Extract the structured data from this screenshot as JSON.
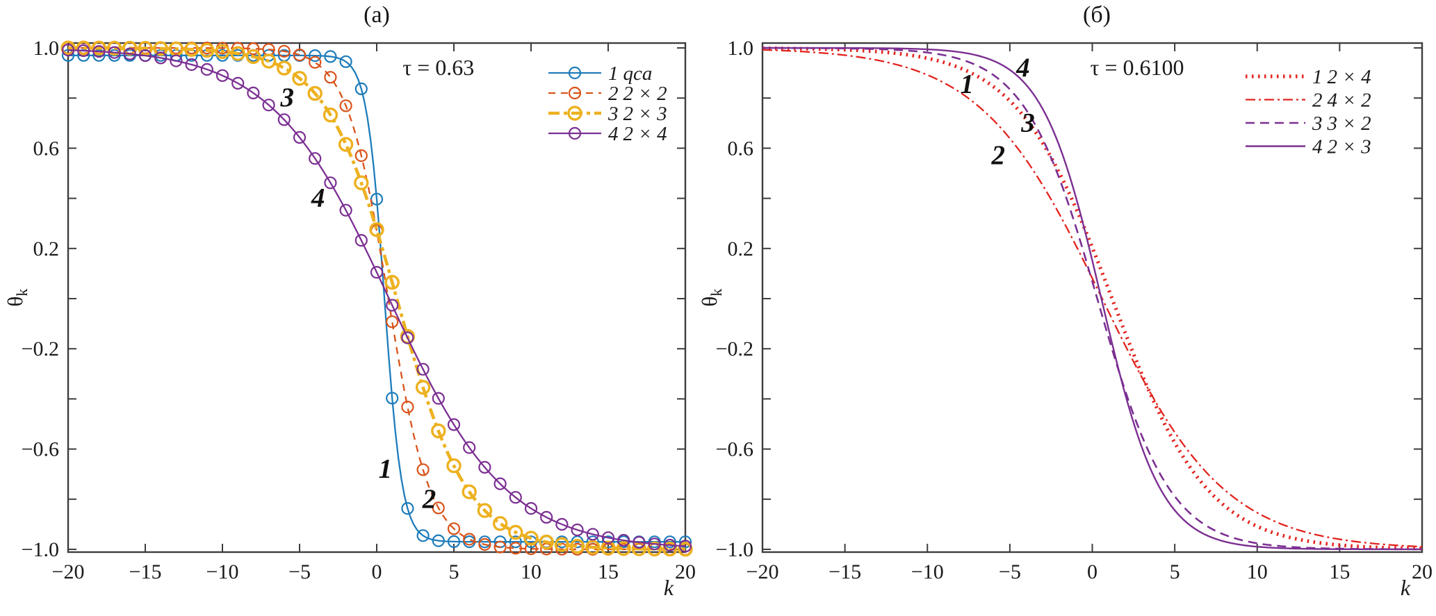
{
  "figure": {
    "background": "#ffffff",
    "axis_color": "#3d3d3d",
    "text_color": "#1a1a1a"
  },
  "chart_data": [
    {
      "panel": "a",
      "type": "line",
      "title": "(a)",
      "tau_label": "τ = 0.63",
      "xlabel": "k",
      "ylabel": {
        "text": "θ",
        "sub": "k"
      },
      "xlim": [
        -20,
        20
      ],
      "ylim": [
        -1.01,
        1.02
      ],
      "xticks": [
        -20,
        -15,
        -10,
        -5,
        0,
        5,
        10,
        15,
        20
      ],
      "yticks_labeled": [
        1.0,
        0.6,
        0.2,
        -0.2,
        -0.6,
        -1.0
      ],
      "ytick_minor_step": 0.2,
      "grid": false,
      "legend_position": "top-right",
      "series": [
        {
          "num": "1",
          "label": "qca",
          "color": "#1e7cba",
          "style": "solid",
          "line_width": 2.3,
          "markers": true,
          "marker": "circle",
          "model": {
            "type": "theta = -amp*tanh((k-x0)/w)",
            "amp": 0.97,
            "x0": 0.5,
            "w": 1.15
          }
        },
        {
          "num": "2",
          "label": "2 × 2",
          "color": "#d95319",
          "style": "dashed",
          "line_width": 2.3,
          "markers": true,
          "marker": "circle",
          "model": {
            "type": "theta = -amp*tanh((k-x0)/w)",
            "amp": 1.0,
            "x0": 0.75,
            "w": 2.7
          }
        },
        {
          "num": "3",
          "label": "2 × 3",
          "color": "#edb120",
          "style": "dashdot",
          "line_width": 4.6,
          "markers": true,
          "marker": "circle",
          "model": {
            "type": "theta = -amp*tanh((k-x0)/w)",
            "amp": 1.0,
            "x0": 1.3,
            "w": 4.6
          }
        },
        {
          "num": "4",
          "label": "2 × 4",
          "color": "#7b2f92",
          "style": "solid",
          "line_width": 2.3,
          "markers": true,
          "marker": "circle",
          "model": {
            "type": "theta = -amp*tanh((k-x0)/w)",
            "amp": 1.0,
            "x0": 0.8,
            "w": 7.6
          }
        }
      ],
      "annotations": [
        {
          "text": "3",
          "k": -5.8,
          "v": 0.8
        },
        {
          "text": "4",
          "k": -3.8,
          "v": 0.4
        },
        {
          "text": "1",
          "k": 0.55,
          "v": -0.68
        },
        {
          "text": "2",
          "k": 3.4,
          "v": -0.8
        }
      ]
    },
    {
      "panel": "b",
      "type": "line",
      "title": "(б)",
      "tau_label": "τ = 0.6100",
      "xlabel": "k",
      "ylabel": {
        "text": "θ",
        "sub": "k"
      },
      "xlim": [
        -20,
        20
      ],
      "ylim": [
        -1.01,
        1.02
      ],
      "xticks": [
        -20,
        -15,
        -10,
        -5,
        0,
        5,
        10,
        15,
        20
      ],
      "yticks_labeled": [
        1.0,
        0.6,
        0.2,
        -0.2,
        -0.6,
        -1.0
      ],
      "ytick_minor_step": 0.2,
      "grid": false,
      "legend_position": "top-right",
      "series": [
        {
          "num": "1",
          "label": "2 × 4",
          "color": "#e2231e",
          "style": "dotted",
          "line_width": 5.2,
          "markers": false,
          "model": {
            "type": "theta = -amp*tanh((k-x0)/w)",
            "amp": 1.0,
            "x0": 1.2,
            "w": 5.8
          }
        },
        {
          "num": "2",
          "label": "4 × 2",
          "color": "#e2231e",
          "style": "dashdot",
          "line_width": 2.3,
          "markers": false,
          "model": {
            "type": "theta = -amp*tanh((k-x0)/w)",
            "amp": 1.0,
            "x0": 0.6,
            "w": 7.4
          }
        },
        {
          "num": "3",
          "label": "3 × 2",
          "color": "#7b2f92",
          "style": "dashed",
          "line_width": 2.6,
          "markers": false,
          "model": {
            "type": "theta = -amp*tanh((k-x0)/w)",
            "amp": 1.0,
            "x0": 0.3,
            "w": 4.4
          }
        },
        {
          "num": "4",
          "label": "2 × 3",
          "color": "#7b2f92",
          "style": "solid",
          "line_width": 2.4,
          "markers": false,
          "model": {
            "type": "theta = -amp*tanh((k-x0)/w)",
            "amp": 1.0,
            "x0": 0.55,
            "w": 3.6
          }
        }
      ],
      "annotations": [
        {
          "text": "1",
          "k": -7.6,
          "v": 0.855
        },
        {
          "text": "4",
          "k": -4.2,
          "v": 0.92
        },
        {
          "text": "3",
          "k": -3.9,
          "v": 0.7
        },
        {
          "text": "2",
          "k": -5.7,
          "v": 0.57
        }
      ]
    }
  ]
}
